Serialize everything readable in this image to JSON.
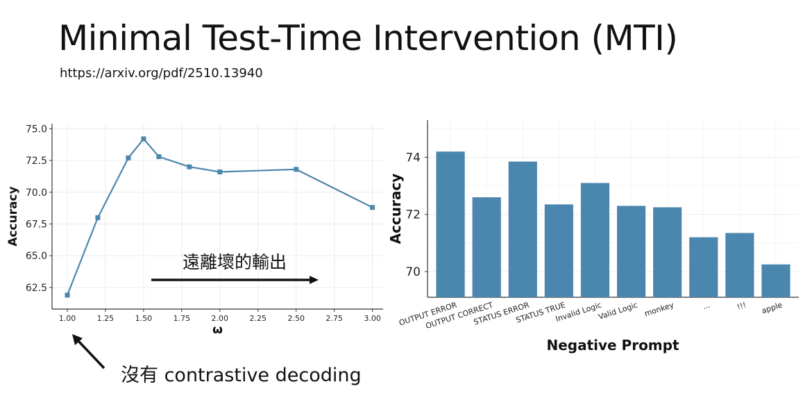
{
  "slide": {
    "title": "Minimal Test-Time Intervention (MTI)",
    "url": "https://arxiv.org/pdf/2510.13940"
  },
  "annotations": {
    "arrow_label": "遠離壞的輸出",
    "note": "沒有 contrastive decoding"
  },
  "colors": {
    "line": "#4a86ad",
    "bar": "#4a86ad",
    "grid": "#ececec",
    "axis": "#333333"
  },
  "chart_data": [
    {
      "type": "line",
      "title": "",
      "xlabel": "ω",
      "ylabel": "Accuracy",
      "x": [
        1.0,
        1.2,
        1.4,
        1.5,
        1.6,
        1.8,
        2.0,
        2.5,
        3.0
      ],
      "series": [
        {
          "values": [
            61.9,
            68.0,
            72.7,
            74.2,
            72.8,
            72.0,
            71.6,
            71.8,
            68.8
          ]
        }
      ],
      "xlim": [
        0.9,
        3.07
      ],
      "ylim": [
        60.8,
        75.4
      ],
      "xticks": [
        "1.00",
        "1.25",
        "1.50",
        "1.75",
        "2.00",
        "2.25",
        "2.50",
        "2.75",
        "3.00"
      ],
      "yticks": [
        "62.5",
        "65.0",
        "67.5",
        "70.0",
        "72.5",
        "75.0"
      ],
      "grid": true
    },
    {
      "type": "bar",
      "title": "",
      "xlabel": "Negative Prompt",
      "ylabel": "Accuracy",
      "categories": [
        "OUTPUT ERROR",
        "OUTPUT CORRECT",
        "STATUS ERROR",
        "STATUS TRUE",
        "Invalid Logic",
        "Valid Logic",
        "monkey",
        "...",
        "!!!",
        "apple"
      ],
      "values": [
        74.2,
        72.6,
        73.85,
        72.35,
        73.1,
        72.3,
        72.25,
        71.2,
        71.35,
        70.25
      ],
      "ylim": [
        69.1,
        75.3
      ],
      "yticks": [
        "70",
        "72",
        "74"
      ],
      "grid": true
    }
  ]
}
